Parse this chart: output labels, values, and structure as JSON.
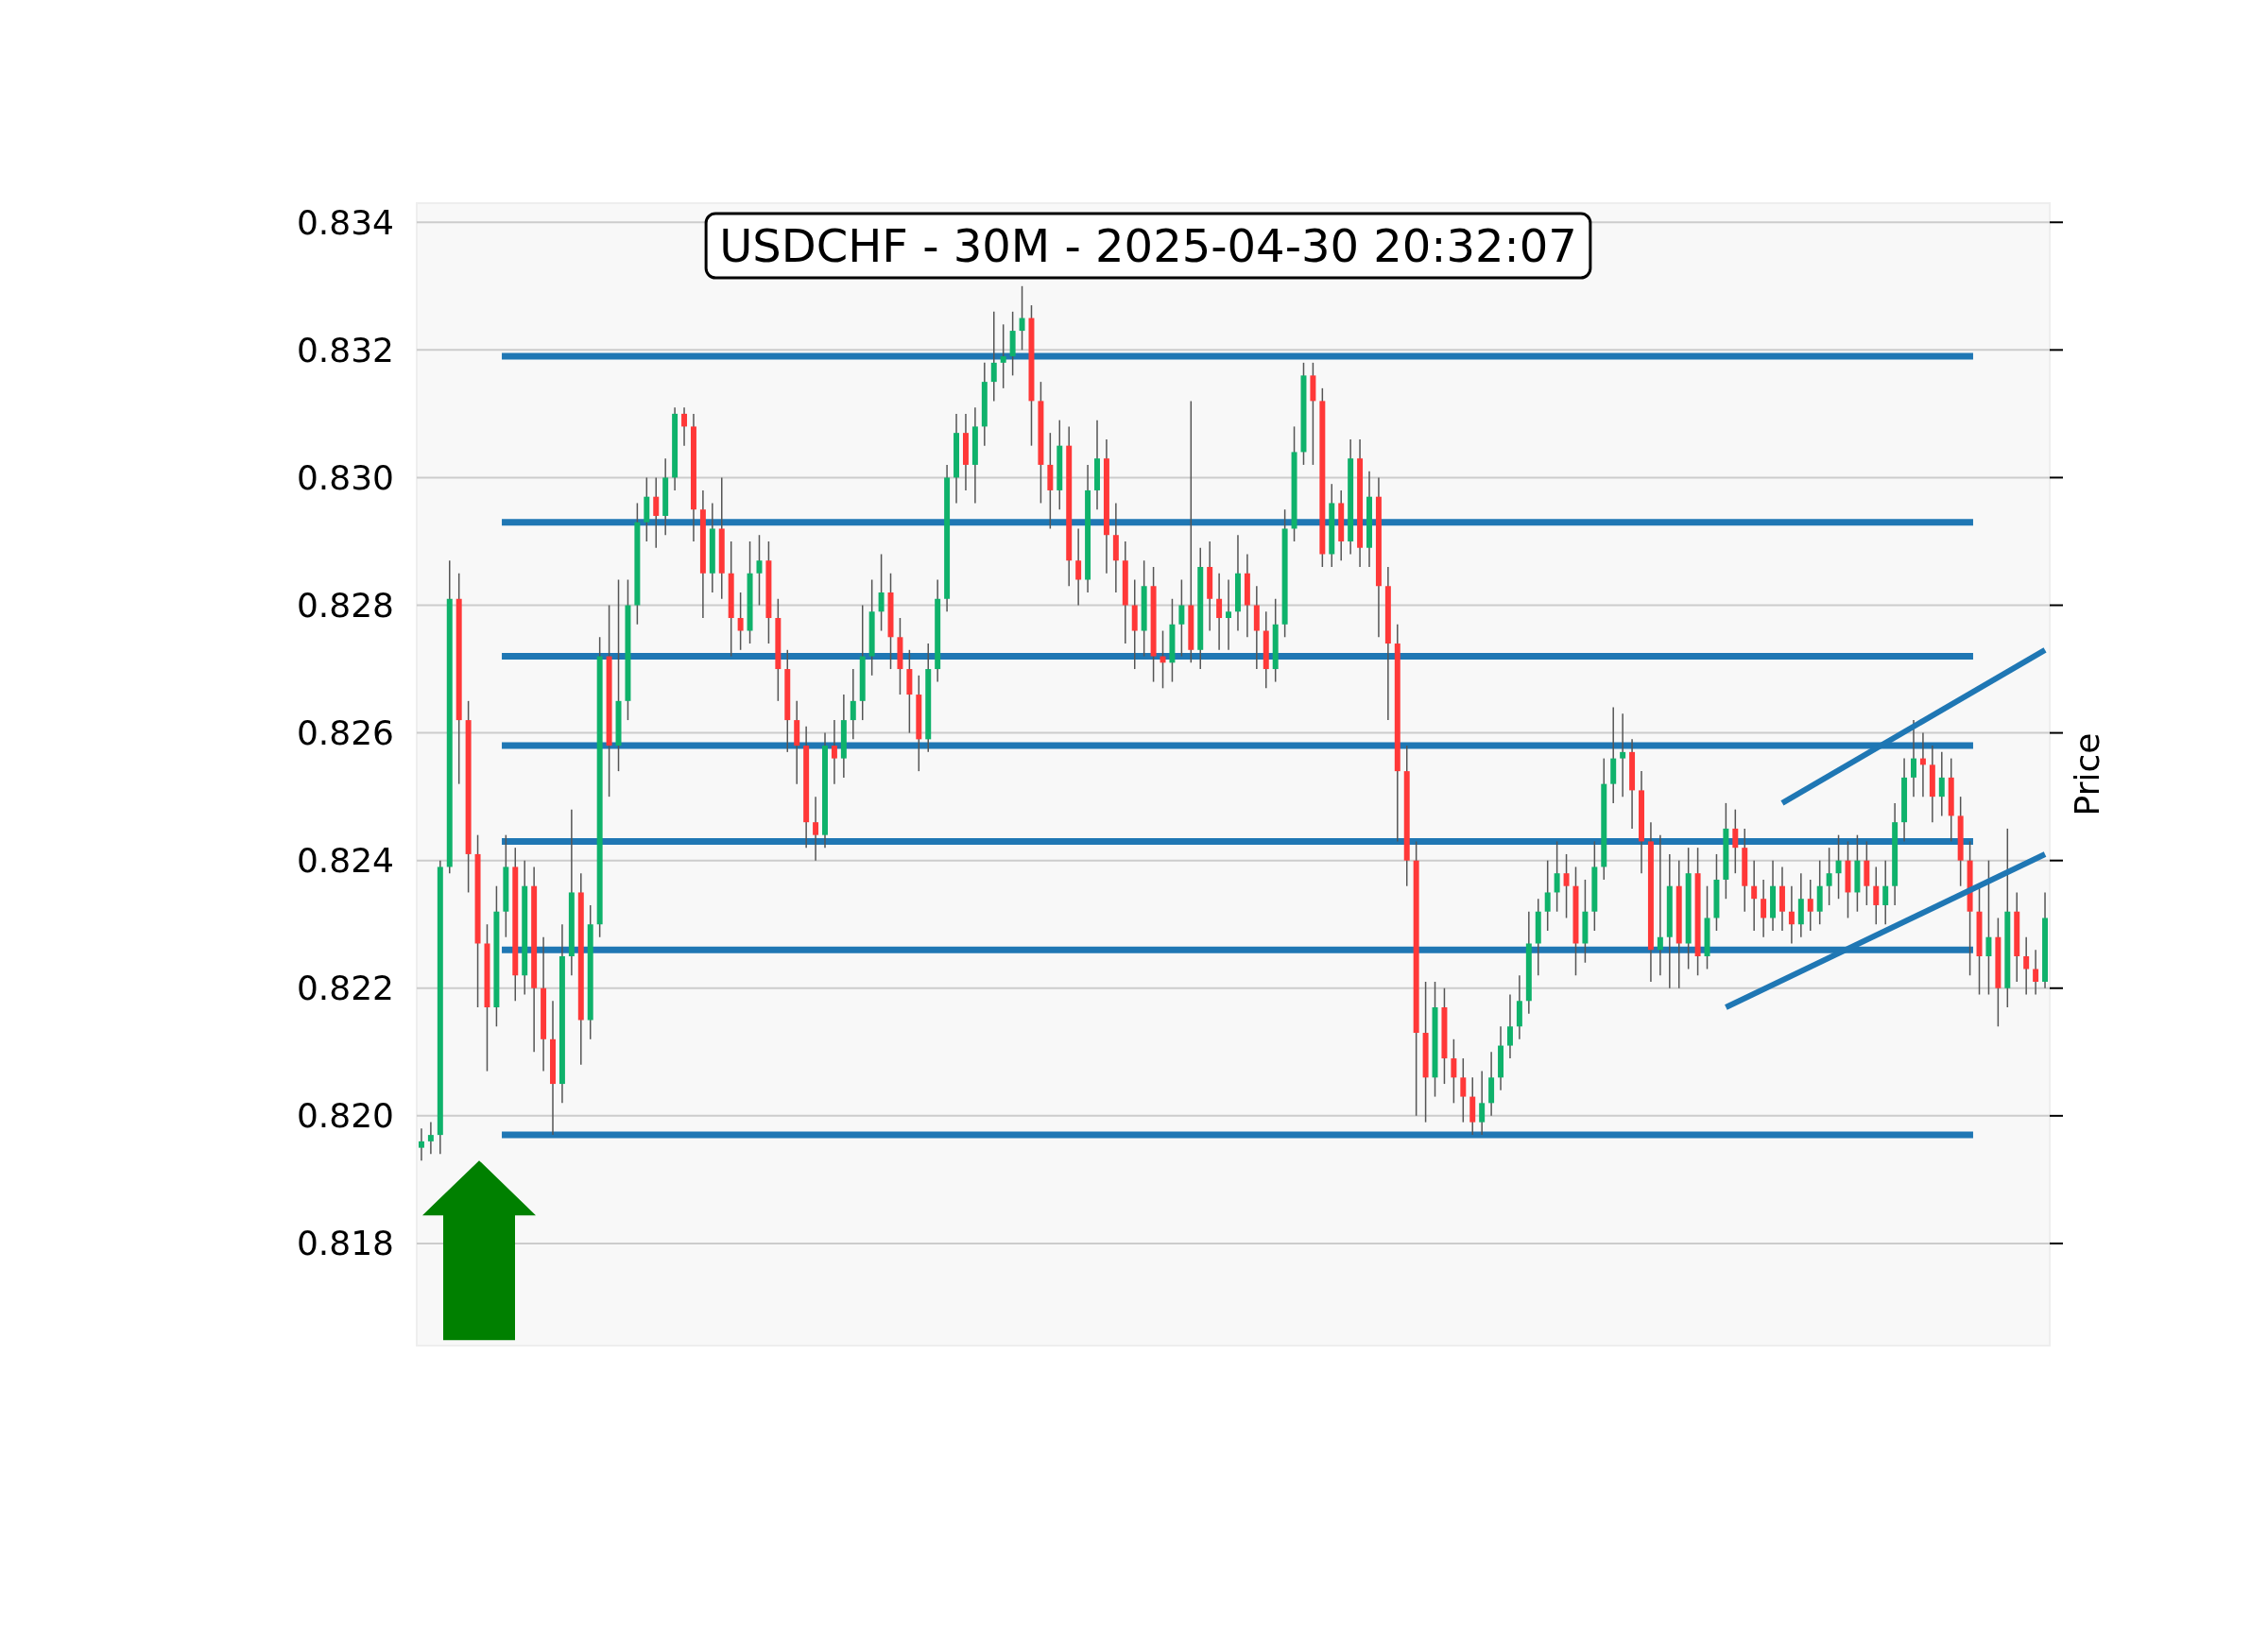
{
  "chart_data": {
    "type": "candlestick",
    "title": "USDCHF - 30M - 2025-04-30 20:32:07",
    "ylabel": "Price",
    "ylim": [
      0.8164,
      0.8343
    ],
    "yticks": [
      0.818,
      {
        "value": 0.82,
        "label": "0.820"
      },
      0.822,
      0.824,
      0.826,
      0.828,
      {
        "value": 0.83,
        "label": "0.830"
      },
      0.832,
      0.834
    ],
    "grid": "y",
    "categories": [
      null,
      null,
      null,
      null,
      null,
      null,
      null,
      null,
      null,
      null,
      null,
      null,
      null,
      null,
      null,
      null,
      null,
      null,
      null,
      null,
      null,
      null,
      null,
      null,
      null,
      null,
      null,
      null,
      null,
      null,
      null,
      null,
      null,
      null,
      null,
      null,
      null,
      null,
      null,
      null,
      null,
      null,
      null,
      null,
      null,
      null,
      null,
      null,
      null,
      null,
      null,
      null,
      null,
      null,
      null,
      null,
      null,
      null,
      null,
      null,
      null,
      null,
      null,
      null,
      null,
      null,
      null,
      null,
      null,
      null,
      null,
      null,
      null,
      null,
      null,
      null,
      null,
      null,
      null,
      null,
      null,
      null,
      null,
      null,
      null,
      null,
      null,
      null,
      null,
      null,
      null,
      null,
      null,
      null,
      null,
      null,
      null,
      null,
      null,
      null,
      null,
      null,
      null,
      null,
      null,
      null,
      null,
      null,
      null,
      null,
      null,
      null,
      null,
      null,
      null,
      null,
      null,
      null,
      null,
      null,
      null,
      null,
      null,
      null,
      null,
      null,
      null,
      null,
      null,
      null,
      null,
      null,
      null,
      null,
      null,
      null,
      null,
      null,
      null,
      null,
      null,
      null,
      null,
      null,
      null,
      null,
      null,
      null,
      null,
      null,
      null,
      null,
      null,
      null,
      null,
      null,
      null,
      null,
      null,
      null,
      null,
      null,
      null,
      null,
      null,
      null,
      null,
      null,
      null,
      null,
      null,
      null,
      null,
      null
    ],
    "ohlc": [
      [
        0.8195,
        0.8198,
        0.8193,
        0.8196
      ],
      [
        0.8196,
        0.8199,
        0.8194,
        0.8197
      ],
      [
        0.8197,
        0.824,
        0.8194,
        0.8239
      ],
      [
        0.8239,
        0.8287,
        0.8238,
        0.8281
      ],
      [
        0.8281,
        0.8285,
        0.8252,
        0.8262
      ],
      [
        0.8262,
        0.8265,
        0.8235,
        0.8241
      ],
      [
        0.8241,
        0.8244,
        0.8217,
        0.8227
      ],
      [
        0.8227,
        0.823,
        0.8207,
        0.8217
      ],
      [
        0.8217,
        0.8236,
        0.8214,
        0.8232
      ],
      [
        0.8232,
        0.8244,
        0.8228,
        0.8239
      ],
      [
        0.8239,
        0.8242,
        0.8218,
        0.8222
      ],
      [
        0.8222,
        0.824,
        0.8219,
        0.8236
      ],
      [
        0.8236,
        0.8239,
        0.821,
        0.822
      ],
      [
        0.822,
        0.8228,
        0.8207,
        0.8212
      ],
      [
        0.8212,
        0.8218,
        0.8197,
        0.8205
      ],
      [
        0.8205,
        0.823,
        0.8202,
        0.8225
      ],
      [
        0.8225,
        0.8248,
        0.8222,
        0.8235
      ],
      [
        0.8235,
        0.8238,
        0.8208,
        0.8215
      ],
      [
        0.8215,
        0.8233,
        0.8212,
        0.823
      ],
      [
        0.823,
        0.8275,
        0.8228,
        0.8272
      ],
      [
        0.8272,
        0.828,
        0.825,
        0.8258
      ],
      [
        0.8258,
        0.8284,
        0.8254,
        0.8265
      ],
      [
        0.8265,
        0.8284,
        0.8262,
        0.828
      ],
      [
        0.828,
        0.8296,
        0.8277,
        0.8293
      ],
      [
        0.8293,
        0.83,
        0.829,
        0.8297
      ],
      [
        0.8297,
        0.83,
        0.8289,
        0.8294
      ],
      [
        0.8294,
        0.8303,
        0.8291,
        0.83
      ],
      [
        0.83,
        0.8311,
        0.8298,
        0.831
      ],
      [
        0.831,
        0.8311,
        0.8305,
        0.8308
      ],
      [
        0.8308,
        0.831,
        0.829,
        0.8295
      ],
      [
        0.8295,
        0.8298,
        0.8278,
        0.8285
      ],
      [
        0.8285,
        0.8296,
        0.8282,
        0.8292
      ],
      [
        0.8292,
        0.83,
        0.8281,
        0.8285
      ],
      [
        0.8285,
        0.829,
        0.8272,
        0.8278
      ],
      [
        0.8278,
        0.8282,
        0.8273,
        0.8276
      ],
      [
        0.8276,
        0.829,
        0.8274,
        0.8285
      ],
      [
        0.8285,
        0.8291,
        0.828,
        0.8287
      ],
      [
        0.8287,
        0.829,
        0.8274,
        0.8278
      ],
      [
        0.8278,
        0.8281,
        0.8265,
        0.827
      ],
      [
        0.827,
        0.8273,
        0.8257,
        0.8262
      ],
      [
        0.8262,
        0.8265,
        0.8252,
        0.8258
      ],
      [
        0.8258,
        0.8261,
        0.8242,
        0.8246
      ],
      [
        0.8246,
        0.825,
        0.824,
        0.8244
      ],
      [
        0.8244,
        0.826,
        0.8242,
        0.8258
      ],
      [
        0.8258,
        0.8262,
        0.8252,
        0.8256
      ],
      [
        0.8256,
        0.8266,
        0.8253,
        0.8262
      ],
      [
        0.8262,
        0.827,
        0.8259,
        0.8265
      ],
      [
        0.8265,
        0.828,
        0.8262,
        0.8272
      ],
      [
        0.8272,
        0.8284,
        0.8269,
        0.8279
      ],
      [
        0.8279,
        0.8288,
        0.8276,
        0.8282
      ],
      [
        0.8282,
        0.8285,
        0.827,
        0.8275
      ],
      [
        0.8275,
        0.8278,
        0.8266,
        0.827
      ],
      [
        0.827,
        0.8273,
        0.826,
        0.8266
      ],
      [
        0.8266,
        0.8269,
        0.8254,
        0.8259
      ],
      [
        0.8259,
        0.8274,
        0.8257,
        0.827
      ],
      [
        0.827,
        0.8284,
        0.8268,
        0.8281
      ],
      [
        0.8281,
        0.8302,
        0.8279,
        0.83
      ],
      [
        0.83,
        0.831,
        0.8296,
        0.8307
      ],
      [
        0.8307,
        0.831,
        0.8298,
        0.8302
      ],
      [
        0.8302,
        0.8311,
        0.8296,
        0.8308
      ],
      [
        0.8308,
        0.8318,
        0.8305,
        0.8315
      ],
      [
        0.8315,
        0.8326,
        0.8312,
        0.8318
      ],
      [
        0.8318,
        0.8324,
        0.8314,
        0.8319
      ],
      [
        0.8319,
        0.8326,
        0.8316,
        0.8323
      ],
      [
        0.8323,
        0.833,
        0.832,
        0.8325
      ],
      [
        0.8325,
        0.8327,
        0.8305,
        0.8312
      ],
      [
        0.8312,
        0.8315,
        0.8296,
        0.8302
      ],
      [
        0.8302,
        0.8307,
        0.8292,
        0.8298
      ],
      [
        0.8298,
        0.8309,
        0.8295,
        0.8305
      ],
      [
        0.8305,
        0.8308,
        0.8283,
        0.8287
      ],
      [
        0.8287,
        0.8292,
        0.828,
        0.8284
      ],
      [
        0.8284,
        0.8302,
        0.8282,
        0.8298
      ],
      [
        0.8298,
        0.8309,
        0.8295,
        0.8303
      ],
      [
        0.8303,
        0.8306,
        0.8285,
        0.8291
      ],
      [
        0.8291,
        0.8296,
        0.8282,
        0.8287
      ],
      [
        0.8287,
        0.829,
        0.8274,
        0.828
      ],
      [
        0.828,
        0.8284,
        0.827,
        0.8276
      ],
      [
        0.8276,
        0.8287,
        0.8272,
        0.8283
      ],
      [
        0.8283,
        0.8286,
        0.8268,
        0.8272
      ],
      [
        0.8272,
        0.8276,
        0.8267,
        0.8271
      ],
      [
        0.8271,
        0.8281,
        0.8268,
        0.8277
      ],
      [
        0.8277,
        0.8284,
        0.8272,
        0.828
      ],
      [
        0.828,
        0.8312,
        0.8271,
        0.8273
      ],
      [
        0.8273,
        0.8289,
        0.827,
        0.8286
      ],
      [
        0.8286,
        0.829,
        0.8276,
        0.8281
      ],
      [
        0.8281,
        0.8285,
        0.8273,
        0.8278
      ],
      [
        0.8278,
        0.8284,
        0.8273,
        0.8279
      ],
      [
        0.8279,
        0.8291,
        0.8276,
        0.8285
      ],
      [
        0.8285,
        0.8288,
        0.8275,
        0.828
      ],
      [
        0.828,
        0.8283,
        0.827,
        0.8276
      ],
      [
        0.8276,
        0.8279,
        0.8267,
        0.827
      ],
      [
        0.827,
        0.8281,
        0.8268,
        0.8277
      ],
      [
        0.8277,
        0.8295,
        0.8275,
        0.8292
      ],
      [
        0.8292,
        0.8308,
        0.829,
        0.8304
      ],
      [
        0.8304,
        0.8318,
        0.8302,
        0.8316
      ],
      [
        0.8316,
        0.8318,
        0.8302,
        0.8312
      ],
      [
        0.8312,
        0.8314,
        0.8286,
        0.8288
      ],
      [
        0.8288,
        0.8299,
        0.8286,
        0.8296
      ],
      [
        0.8296,
        0.8298,
        0.8287,
        0.829
      ],
      [
        0.829,
        0.8306,
        0.8288,
        0.8303
      ],
      [
        0.8303,
        0.8306,
        0.8286,
        0.8289
      ],
      [
        0.8289,
        0.8301,
        0.8286,
        0.8297
      ],
      [
        0.8297,
        0.83,
        0.8275,
        0.8283
      ],
      [
        0.8283,
        0.8286,
        0.8262,
        0.8274
      ],
      [
        0.8274,
        0.8277,
        0.8243,
        0.8254
      ],
      [
        0.8254,
        0.8258,
        0.8236,
        0.824
      ],
      [
        0.824,
        0.8243,
        0.82,
        0.8213
      ],
      [
        0.8213,
        0.8221,
        0.8199,
        0.8206
      ],
      [
        0.8206,
        0.8221,
        0.8203,
        0.8217
      ],
      [
        0.8217,
        0.822,
        0.8205,
        0.8209
      ],
      [
        0.8209,
        0.8212,
        0.8202,
        0.8206
      ],
      [
        0.8206,
        0.8209,
        0.8199,
        0.8203
      ],
      [
        0.8203,
        0.8206,
        0.8197,
        0.8199
      ],
      [
        0.8199,
        0.8207,
        0.8197,
        0.8202
      ],
      [
        0.8202,
        0.821,
        0.82,
        0.8206
      ],
      [
        0.8206,
        0.8214,
        0.8204,
        0.8211
      ],
      [
        0.8211,
        0.8219,
        0.8209,
        0.8214
      ],
      [
        0.8214,
        0.8222,
        0.8212,
        0.8218
      ],
      [
        0.8218,
        0.8232,
        0.8216,
        0.8227
      ],
      [
        0.8227,
        0.8234,
        0.8222,
        0.8232
      ],
      [
        0.8232,
        0.824,
        0.8229,
        0.8235
      ],
      [
        0.8235,
        0.8243,
        0.8232,
        0.8238
      ],
      [
        0.8238,
        0.8241,
        0.8231,
        0.8236
      ],
      [
        0.8236,
        0.8239,
        0.8222,
        0.8227
      ],
      [
        0.8227,
        0.8237,
        0.8224,
        0.8232
      ],
      [
        0.8232,
        0.8243,
        0.8229,
        0.8239
      ],
      [
        0.8239,
        0.8256,
        0.8237,
        0.8252
      ],
      [
        0.8252,
        0.8264,
        0.8249,
        0.8256
      ],
      [
        0.8256,
        0.8263,
        0.825,
        0.8257
      ],
      [
        0.8257,
        0.8259,
        0.8245,
        0.8251
      ],
      [
        0.8251,
        0.8254,
        0.8238,
        0.8243
      ],
      [
        0.8243,
        0.8246,
        0.8221,
        0.8226
      ],
      [
        0.8226,
        0.8244,
        0.8222,
        0.8228
      ],
      [
        0.8228,
        0.8241,
        0.822,
        0.8236
      ],
      [
        0.8236,
        0.824,
        0.822,
        0.8227
      ],
      [
        0.8227,
        0.8242,
        0.8223,
        0.8238
      ],
      [
        0.8238,
        0.8242,
        0.8222,
        0.8225
      ],
      [
        0.8225,
        0.8236,
        0.8223,
        0.8231
      ],
      [
        0.8231,
        0.8241,
        0.8229,
        0.8237
      ],
      [
        0.8237,
        0.8249,
        0.8234,
        0.8245
      ],
      [
        0.8245,
        0.8248,
        0.8238,
        0.8242
      ],
      [
        0.8242,
        0.8245,
        0.8232,
        0.8236
      ],
      [
        0.8236,
        0.824,
        0.8229,
        0.8234
      ],
      [
        0.8234,
        0.8237,
        0.8228,
        0.8231
      ],
      [
        0.8231,
        0.824,
        0.8229,
        0.8236
      ],
      [
        0.8236,
        0.8239,
        0.8229,
        0.8232
      ],
      [
        0.8232,
        0.8236,
        0.8227,
        0.823
      ],
      [
        0.823,
        0.8238,
        0.8228,
        0.8234
      ],
      [
        0.8234,
        0.8237,
        0.8229,
        0.8232
      ],
      [
        0.8232,
        0.824,
        0.823,
        0.8236
      ],
      [
        0.8236,
        0.8242,
        0.8233,
        0.8238
      ],
      [
        0.8238,
        0.8244,
        0.8234,
        0.824
      ],
      [
        0.824,
        0.8243,
        0.8231,
        0.8235
      ],
      [
        0.8235,
        0.8244,
        0.8232,
        0.824
      ],
      [
        0.824,
        0.8243,
        0.8233,
        0.8236
      ],
      [
        0.8236,
        0.8239,
        0.823,
        0.8233
      ],
      [
        0.8233,
        0.824,
        0.823,
        0.8236
      ],
      [
        0.8236,
        0.8249,
        0.8233,
        0.8246
      ],
      [
        0.8246,
        0.8256,
        0.8243,
        0.8253
      ],
      [
        0.8253,
        0.8262,
        0.825,
        0.8256
      ],
      [
        0.8256,
        0.826,
        0.825,
        0.8255
      ],
      [
        0.8255,
        0.8258,
        0.8246,
        0.825
      ],
      [
        0.825,
        0.8257,
        0.8247,
        0.8253
      ],
      [
        0.8253,
        0.8256,
        0.8243,
        0.8247
      ],
      [
        0.8247,
        0.825,
        0.8236,
        0.824
      ],
      [
        0.824,
        0.8243,
        0.8222,
        0.8232
      ],
      [
        0.8232,
        0.8236,
        0.8219,
        0.8225
      ],
      [
        0.8225,
        0.824,
        0.8219,
        0.8228
      ],
      [
        0.8228,
        0.8231,
        0.8214,
        0.822
      ],
      [
        0.822,
        0.8245,
        0.8217,
        0.8232
      ],
      [
        0.8232,
        0.8235,
        0.8221,
        0.8225
      ],
      [
        0.8225,
        0.8228,
        0.8219,
        0.8223
      ],
      [
        0.8223,
        0.8226,
        0.8219,
        0.8221
      ],
      [
        0.8221,
        0.8235,
        0.822,
        0.8231
      ]
    ],
    "series": [
      {
        "type": "line",
        "values": [
          null,
          null,
          null,
          null,
          null,
          null,
          null,
          null,
          null,
          null,
          null,
          null,
          null,
          null,
          null,
          null,
          null,
          null,
          null,
          null,
          null,
          null,
          null,
          null,
          null,
          null,
          null,
          null,
          null,
          null,
          null,
          null,
          null,
          null,
          null,
          null,
          null,
          null,
          null,
          null,
          null,
          null,
          null,
          null,
          null,
          null,
          null,
          null,
          null,
          null,
          null,
          null,
          null,
          null,
          null,
          null,
          null,
          null,
          null,
          null,
          null,
          null,
          null,
          null,
          null,
          null,
          null,
          null,
          null,
          null,
          null,
          null,
          null,
          null,
          null,
          null,
          null,
          null,
          null,
          null,
          null,
          null,
          null,
          null,
          null,
          null,
          null,
          null,
          null,
          null,
          null,
          null,
          null,
          null,
          null,
          null,
          null,
          null,
          null,
          null,
          null,
          null,
          null,
          null,
          null,
          null,
          null,
          null,
          null,
          null,
          null,
          null,
          null,
          null,
          null,
          null,
          null,
          null,
          null,
          null,
          null,
          null,
          null,
          null,
          null,
          null,
          null,
          null,
          null,
          null,
          null,
          null,
          null,
          null,
          null,
          null,
          null,
          null,
          null,
          null,
          null,
          null,
          null,
          null,
          null,
          0.8249,
          null,
          null,
          null,
          null,
          null,
          null,
          null,
          null,
          null,
          null,
          null,
          null,
          null,
          null,
          null,
          null,
          null,
          null,
          null,
          null,
          null,
          null,
          null,
          null,
          null,
          null,
          null,
          0.8273
        ],
        "color": "#1f77b4"
      },
      {
        "type": "line",
        "values": [
          null,
          null,
          null,
          null,
          null,
          null,
          null,
          null,
          null,
          null,
          null,
          null,
          null,
          null,
          null,
          null,
          null,
          null,
          null,
          null,
          null,
          null,
          null,
          null,
          null,
          null,
          null,
          null,
          null,
          null,
          null,
          null,
          null,
          null,
          null,
          null,
          null,
          null,
          null,
          null,
          null,
          null,
          null,
          null,
          null,
          null,
          null,
          null,
          null,
          null,
          null,
          null,
          null,
          null,
          null,
          null,
          null,
          null,
          null,
          null,
          null,
          null,
          null,
          null,
          null,
          null,
          null,
          null,
          null,
          null,
          null,
          null,
          null,
          null,
          null,
          null,
          null,
          null,
          null,
          null,
          null,
          null,
          null,
          null,
          null,
          null,
          null,
          null,
          null,
          null,
          null,
          null,
          null,
          null,
          null,
          null,
          null,
          null,
          null,
          null,
          null,
          null,
          null,
          null,
          null,
          null,
          null,
          null,
          null,
          null,
          null,
          null,
          null,
          null,
          null,
          null,
          null,
          null,
          null,
          null,
          null,
          null,
          null,
          null,
          null,
          null,
          null,
          null,
          null,
          null,
          null,
          null,
          null,
          null,
          null,
          null,
          null,
          null,
          null,
          0.8217,
          null,
          null,
          null,
          null,
          null,
          null,
          null,
          null,
          null,
          null,
          null,
          null,
          null,
          null,
          null,
          null,
          null,
          null,
          null,
          null,
          null,
          null,
          null,
          null,
          null,
          null,
          null,
          null,
          null,
          null,
          null,
          null,
          null,
          0.8241
        ],
        "color": "#1f77b4"
      }
    ],
    "ref_lines": [
      {
        "axis": "y",
        "value": 0.8319,
        "color": "#1f77b4"
      },
      {
        "axis": "y",
        "value": 0.8293,
        "color": "#1f77b4"
      },
      {
        "axis": "y",
        "value": 0.8272,
        "color": "#1f77b4"
      },
      {
        "axis": "y",
        "value": 0.8258,
        "color": "#1f77b4"
      },
      {
        "axis": "y",
        "value": 0.8243,
        "color": "#1f77b4"
      },
      {
        "axis": "y",
        "value": 0.8226,
        "color": "#1f77b4"
      },
      {
        "axis": "y",
        "value": 0.8197,
        "color": "#1f77b4"
      }
    ]
  }
}
